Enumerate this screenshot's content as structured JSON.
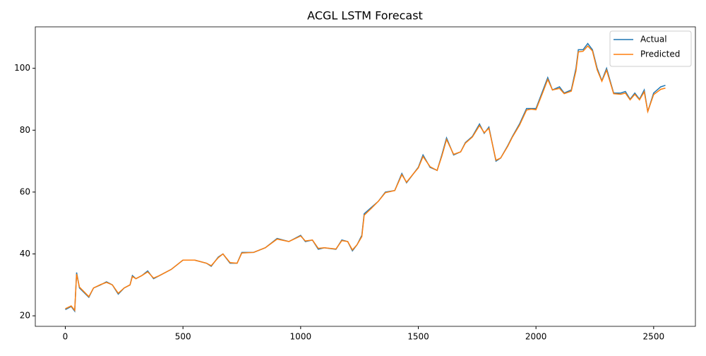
{
  "chart_data": {
    "type": "line",
    "title": "ACGL LSTM Forecast",
    "x": [
      0,
      25,
      40,
      48,
      60,
      100,
      120,
      150,
      175,
      200,
      225,
      250,
      275,
      285,
      300,
      325,
      350,
      375,
      400,
      450,
      500,
      550,
      600,
      620,
      650,
      670,
      700,
      730,
      750,
      800,
      850,
      900,
      950,
      1000,
      1020,
      1050,
      1075,
      1100,
      1150,
      1175,
      1200,
      1220,
      1240,
      1260,
      1270,
      1300,
      1330,
      1360,
      1400,
      1430,
      1450,
      1480,
      1500,
      1520,
      1550,
      1580,
      1600,
      1620,
      1650,
      1680,
      1700,
      1730,
      1760,
      1780,
      1800,
      1830,
      1850,
      1880,
      1900,
      1930,
      1960,
      1980,
      2000,
      2030,
      2050,
      2070,
      2100,
      2120,
      2150,
      2170,
      2180,
      2200,
      2220,
      2240,
      2260,
      2280,
      2300,
      2330,
      2360,
      2380,
      2400,
      2420,
      2440,
      2460,
      2475,
      2500,
      2530,
      2550
    ],
    "series": [
      {
        "name": "Actual",
        "color": "#1f77b4",
        "values": [
          22,
          23,
          21.5,
          34,
          29,
          26,
          29,
          30,
          31,
          30,
          27,
          29,
          30,
          33,
          32,
          33,
          34.5,
          32,
          33,
          35,
          38,
          38,
          37,
          36,
          39,
          40,
          37,
          37,
          40.5,
          40.5,
          42,
          45,
          44,
          46,
          44,
          44.5,
          41.5,
          42,
          41.5,
          44.5,
          44,
          41,
          43,
          46,
          53,
          55,
          57,
          60,
          60.5,
          66,
          63,
          66,
          68,
          72,
          68,
          67,
          72,
          77.5,
          72,
          73,
          76,
          78,
          82,
          79,
          81,
          70,
          71,
          75,
          78,
          82,
          87,
          87,
          87,
          93,
          97,
          93,
          94,
          92,
          93,
          100,
          106,
          106,
          108,
          106,
          100,
          96,
          100,
          92,
          92,
          92.5,
          90,
          92,
          90,
          93,
          86,
          92,
          94,
          94.5
        ]
      },
      {
        "name": "Predicted",
        "color": "#ff7f0e",
        "values": [
          22.3,
          23.2,
          21.8,
          33.5,
          29.3,
          26.2,
          29,
          30.1,
          30.8,
          30,
          27.3,
          29,
          30,
          32.7,
          32,
          33,
          34.2,
          32.2,
          33,
          35,
          38,
          38,
          37,
          36.2,
          38.8,
          40,
          37.2,
          37,
          40.3,
          40.5,
          42,
          44.8,
          44,
          45.8,
          44.2,
          44.5,
          41.8,
          42,
          41.6,
          44.3,
          44,
          41.3,
          43,
          45.6,
          52.5,
          54.7,
          57,
          59.8,
          60.5,
          65.6,
          63.2,
          66,
          67.8,
          71.5,
          68.2,
          67,
          71.6,
          77,
          72.2,
          73,
          75.8,
          77.8,
          81.5,
          79.2,
          80.6,
          70.3,
          71,
          74.8,
          77.8,
          81.6,
          86.5,
          86.8,
          86.6,
          92.4,
          96.4,
          93,
          93.5,
          91.8,
          92.6,
          99.2,
          105.3,
          105.5,
          107.2,
          105.6,
          99.5,
          95.8,
          99.4,
          91.8,
          91.6,
          92,
          89.8,
          91.6,
          89.8,
          92.4,
          86,
          91.5,
          93.2,
          93.6
        ]
      }
    ],
    "xlim": [
      -127.5,
      2677.5
    ],
    "ylim": [
      16.6,
      113.4
    ],
    "xticks": [
      0,
      500,
      1000,
      1500,
      2000,
      2500
    ],
    "yticks": [
      20,
      40,
      60,
      80,
      100
    ],
    "grid": false,
    "legend": "upper right"
  }
}
